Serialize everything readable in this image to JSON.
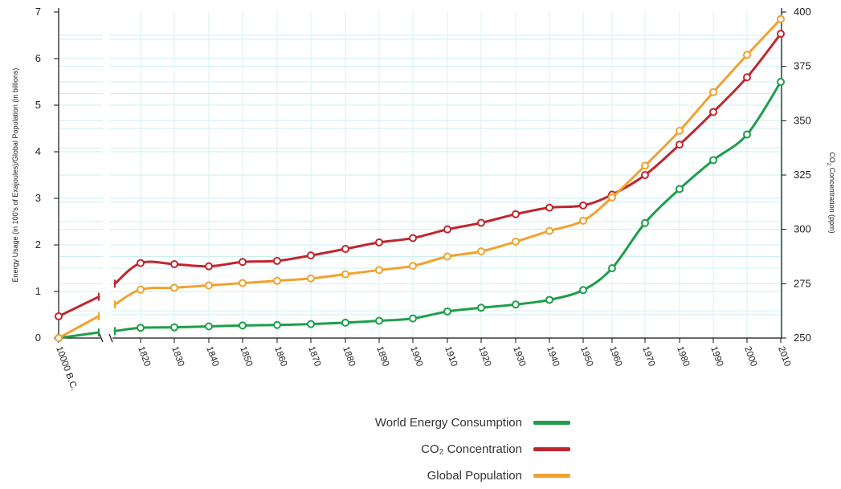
{
  "chart_data": {
    "type": "line",
    "categories": [
      "10000 B.C.",
      "",
      "",
      "1820",
      "1830",
      "1840",
      "1850",
      "1860",
      "1870",
      "1880",
      "1890",
      "1900",
      "1910",
      "1920",
      "1930",
      "1940",
      "1950",
      "1960",
      "1970",
      "1980",
      "1990",
      "2000",
      "2010"
    ],
    "y_left": {
      "label": "Energy Usage (in 100's of Exajoules)/Global Population (in billions)",
      "range": [
        0,
        7
      ],
      "ticks": [
        "0",
        "1",
        "2",
        "3",
        "4",
        "5",
        "6",
        "7"
      ]
    },
    "y_right": {
      "label": "CO2 Concentration (ppm)",
      "range": [
        250,
        400
      ],
      "ticks": [
        "250",
        "275",
        "300",
        "325",
        "350",
        "375",
        "400"
      ]
    },
    "axis_break": "between 10000 B.C. segment and 1800s",
    "grid": "horizontal light cyan lines",
    "series": [
      {
        "name": "World Energy Consumption",
        "axis": "left",
        "color": "#1e9e4a",
        "values": [
          0.0,
          0.12,
          0.15,
          0.22,
          0.23,
          0.25,
          0.27,
          0.28,
          0.3,
          0.33,
          0.37,
          0.42,
          0.57,
          0.65,
          0.72,
          0.82,
          1.03,
          1.5,
          2.47,
          3.2,
          3.82,
          4.37,
          5.5
        ]
      },
      {
        "name": "CO2 Concentration",
        "axis": "right",
        "color": "#c0262e",
        "values": [
          260,
          269,
          275,
          284.5,
          284,
          283,
          285,
          285.5,
          288,
          291,
          294,
          296,
          300,
          303,
          307,
          310,
          311,
          316,
          325,
          339,
          354,
          370,
          390
        ]
      },
      {
        "name": "Global Population",
        "axis": "left",
        "color": "#f2a12e",
        "values": [
          0.0,
          0.47,
          0.72,
          1.04,
          1.08,
          1.13,
          1.18,
          1.23,
          1.28,
          1.37,
          1.46,
          1.55,
          1.75,
          1.86,
          2.07,
          2.3,
          2.52,
          3.02,
          3.7,
          4.45,
          5.28,
          6.08,
          6.85
        ]
      }
    ]
  },
  "legend": {
    "items": [
      {
        "label": "World Energy Consumption",
        "color": "#1e9e4a"
      },
      {
        "label": "CO₂ Concentration",
        "color": "#c0262e"
      },
      {
        "label": "Global Population",
        "color": "#f2a12e"
      }
    ]
  }
}
